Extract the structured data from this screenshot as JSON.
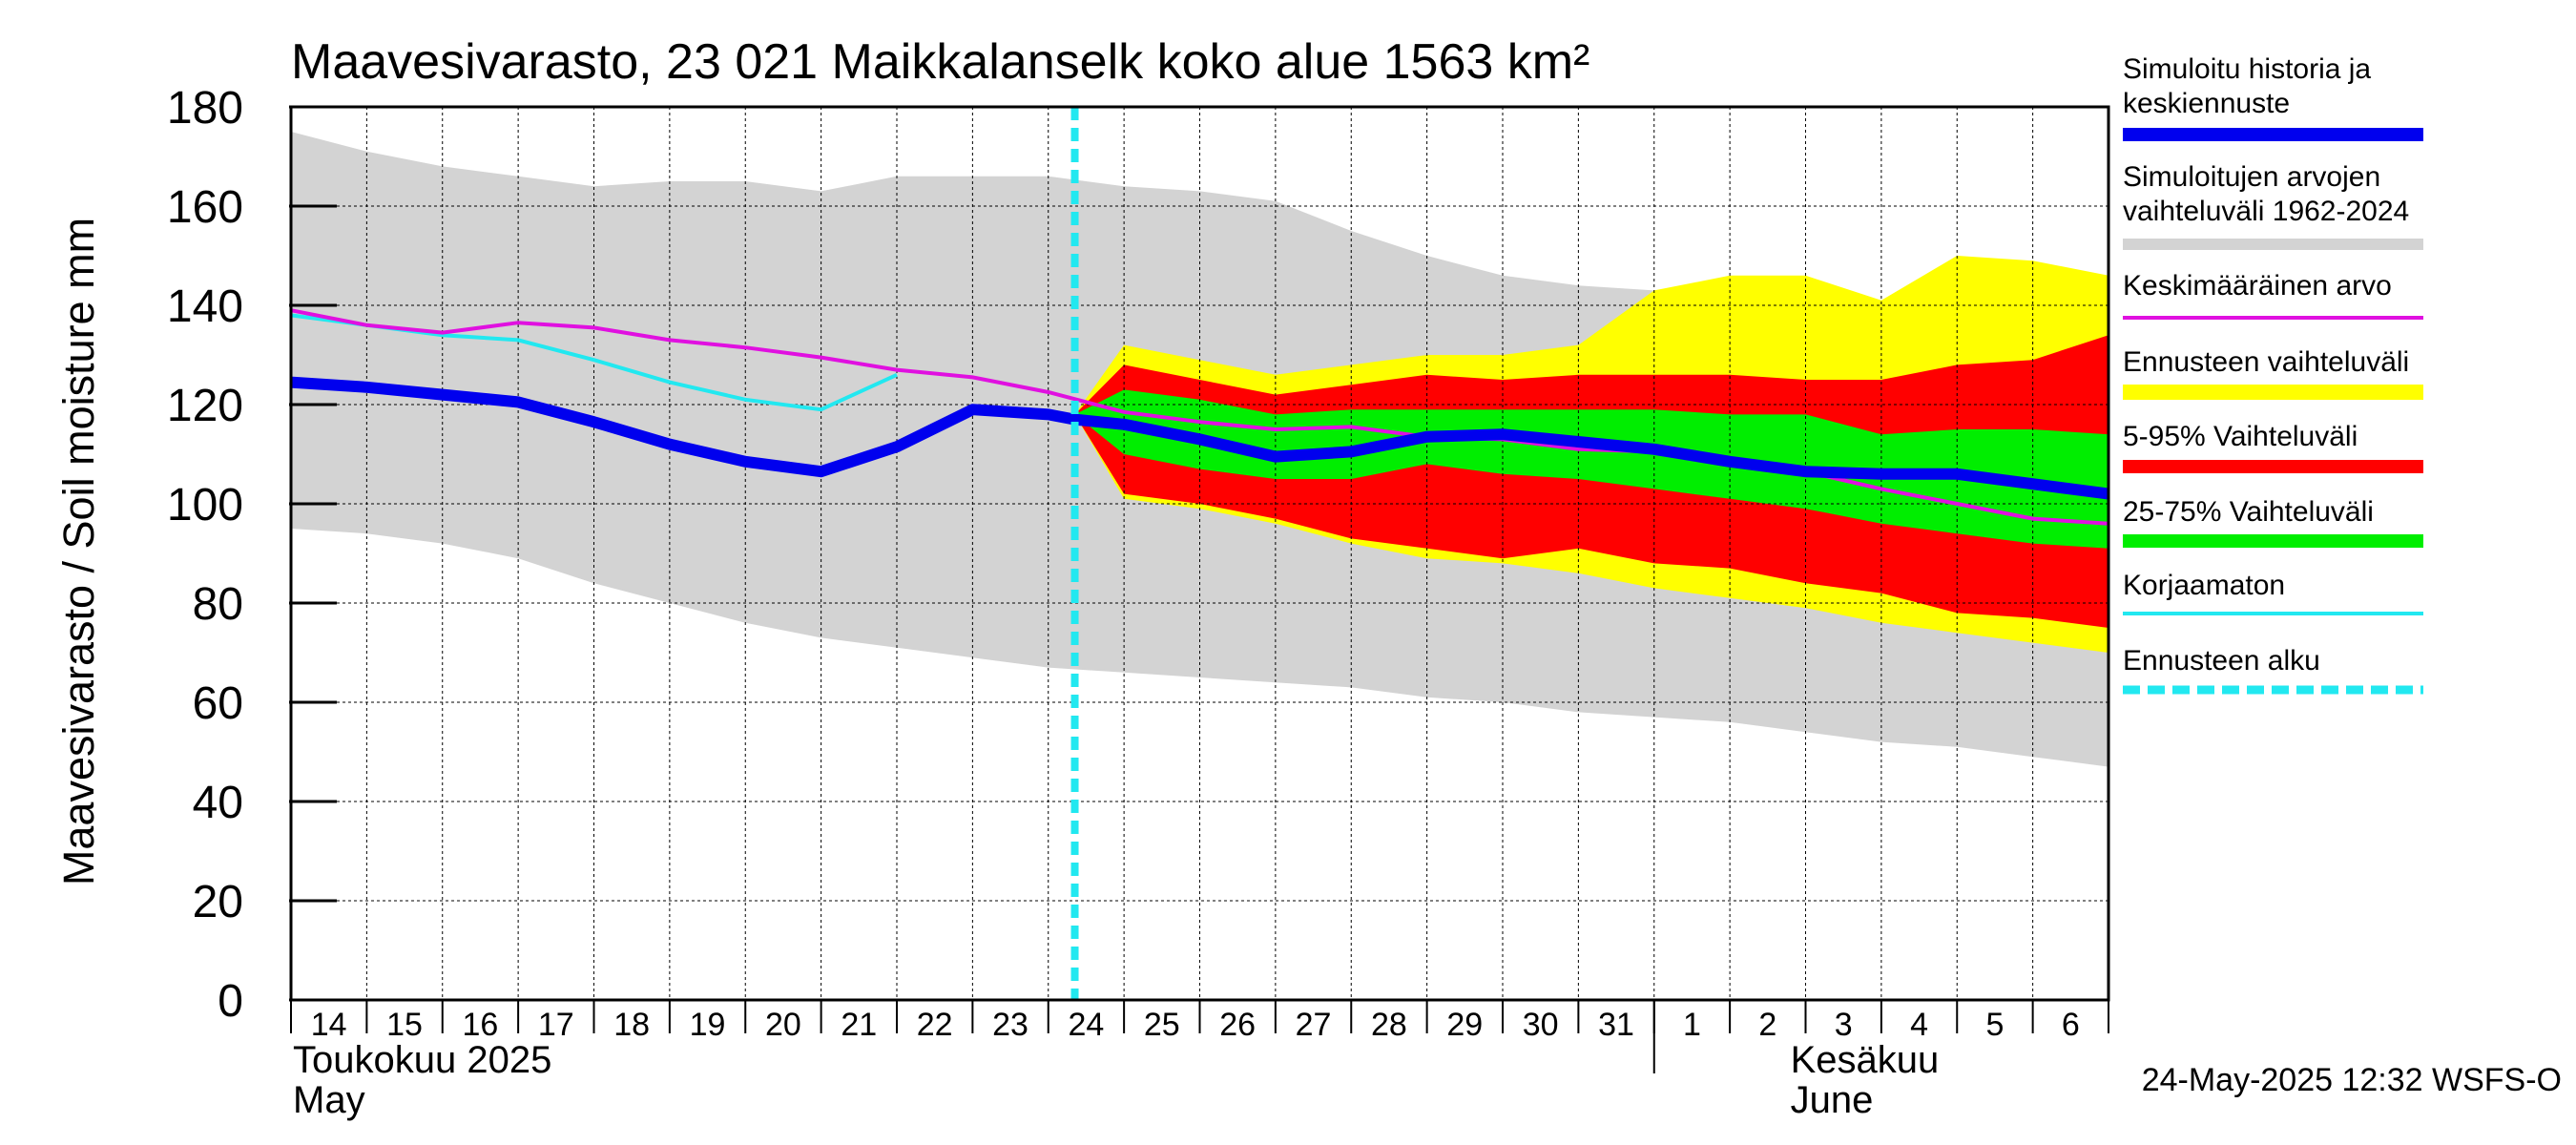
{
  "chart_data": {
    "type": "area",
    "title": "Maavesivarasto, 23 021 Maikkalanselk koko alue 1563 km²",
    "ylabel": "Maavesivarasto / Soil moisture   mm",
    "ylim": [
      0,
      180
    ],
    "yticks": [
      0,
      20,
      40,
      60,
      80,
      100,
      120,
      140,
      160,
      180
    ],
    "x_day_labels": [
      "14",
      "15",
      "16",
      "17",
      "18",
      "19",
      "20",
      "21",
      "22",
      "23",
      "24",
      "25",
      "26",
      "27",
      "28",
      "29",
      "30",
      "31",
      "1",
      "2",
      "3",
      "4",
      "5",
      "6"
    ],
    "month_labels": [
      {
        "fi": "Toukokuu  2025",
        "en": "May"
      },
      {
        "fi": "Kesäkuu",
        "en": "June"
      }
    ],
    "grid": true,
    "legend_position": "right",
    "forecast_start_index": 10.35,
    "timestamp": "24-May-2025 12:32 WSFS-O",
    "colors": {
      "history": "#0000ee",
      "range": "#d3d3d3",
      "mean": "#e010e0",
      "forecast_range": "#ffff00",
      "p5_95": "#ff0000",
      "p25_75": "#00ee00",
      "uncorrected": "#22e8f0",
      "forecast_start": "#22e8f0"
    },
    "legend": [
      {
        "label": "Simuloitu historia ja keskiennuste",
        "lines": [
          "Simuloitu historia ja",
          "keskiennuste"
        ],
        "key": "history"
      },
      {
        "label": "Simuloitujen arvojen vaihteluväli 1962-2024",
        "lines": [
          "Simuloitujen arvojen",
          "vaihteluväli 1962-2024"
        ],
        "key": "range"
      },
      {
        "label": "Keskimääräinen arvo",
        "lines": [
          "Keskimääräinen arvo"
        ],
        "key": "mean"
      },
      {
        "label": "Ennusteen vaihteluväli",
        "lines": [
          "Ennusteen vaihteluväli"
        ],
        "key": "forecast_range"
      },
      {
        "label": "5-95% Vaihteluväli",
        "lines": [
          "5-95% Vaihteluväli"
        ],
        "key": "p5_95"
      },
      {
        "label": "25-75% Vaihteluväli",
        "lines": [
          "25-75% Vaihteluväli"
        ],
        "key": "p25_75"
      },
      {
        "label": "Korjaamaton",
        "lines": [
          "Korjaamaton"
        ],
        "key": "uncorrected"
      },
      {
        "label": "Ennusteen alku",
        "lines": [
          "Ennusteen alku"
        ],
        "key": "forecast_start"
      }
    ],
    "series": {
      "range_band": {
        "x": [
          0,
          1,
          2,
          3,
          4,
          5,
          6,
          7,
          8,
          9,
          10,
          11,
          12,
          13,
          14,
          15,
          16,
          17,
          18,
          19,
          20,
          21,
          22,
          23,
          24
        ],
        "upper": [
          175,
          171,
          168,
          166,
          164,
          165,
          165,
          163,
          166,
          166,
          166,
          164,
          163,
          161,
          155,
          150,
          146,
          144,
          143,
          143,
          141,
          139,
          137,
          135,
          134
        ],
        "lower": [
          95,
          94,
          92,
          89,
          84,
          80,
          76,
          73,
          71,
          69,
          67,
          66,
          65,
          64,
          63,
          61,
          60,
          58,
          57,
          56,
          54,
          52,
          51,
          49,
          47
        ]
      },
      "forecast_band": {
        "x": [
          10.35,
          11,
          12,
          13,
          14,
          15,
          16,
          17,
          18,
          19,
          20,
          21,
          22,
          23,
          24
        ],
        "upper": [
          118,
          132,
          129,
          126,
          128,
          130,
          130,
          132,
          143,
          146,
          146,
          141,
          150,
          149,
          146
        ],
        "lower": [
          118,
          101,
          99,
          96,
          92,
          89,
          88,
          86,
          83,
          81,
          79,
          76,
          74,
          72,
          70
        ]
      },
      "p5_95_band": {
        "x": [
          10.35,
          11,
          12,
          13,
          14,
          15,
          16,
          17,
          18,
          19,
          20,
          21,
          22,
          23,
          24
        ],
        "upper": [
          118,
          128,
          125,
          122,
          124,
          126,
          125,
          126,
          126,
          126,
          125,
          125,
          128,
          129,
          134
        ],
        "lower": [
          118,
          102,
          100,
          97,
          93,
          91,
          89,
          91,
          88,
          87,
          84,
          82,
          78,
          77,
          75
        ]
      },
      "p25_75_band": {
        "x": [
          10.35,
          11,
          12,
          13,
          14,
          15,
          16,
          17,
          18,
          19,
          20,
          21,
          22,
          23,
          24
        ],
        "upper": [
          118,
          123,
          121,
          118,
          119,
          119,
          119,
          119,
          119,
          118,
          118,
          114,
          115,
          115,
          114
        ],
        "lower": [
          118,
          110,
          107,
          105,
          105,
          108,
          106,
          105,
          103,
          101,
          99,
          96,
          94,
          92,
          91
        ]
      },
      "history_median": {
        "x": [
          0,
          1,
          2,
          3,
          4,
          5,
          6,
          7,
          8,
          9,
          10,
          10.35,
          11,
          12,
          13,
          14,
          15,
          16,
          17,
          18,
          19,
          20,
          21,
          22,
          23,
          24
        ],
        "y": [
          124.5,
          123.5,
          122,
          120.5,
          116.5,
          112,
          108.5,
          106.5,
          111.5,
          119,
          118,
          117,
          116,
          113,
          109.5,
          110.5,
          113.5,
          114,
          112.5,
          111,
          108.5,
          106.5,
          106,
          106,
          104,
          102
        ]
      },
      "mean": {
        "x": [
          0,
          1,
          2,
          3,
          4,
          5,
          6,
          7,
          8,
          9,
          10,
          11,
          12,
          13,
          14,
          15,
          16,
          17,
          18,
          19,
          20,
          21,
          22,
          23,
          24
        ],
        "y": [
          139,
          136,
          134.5,
          136.5,
          135.5,
          133,
          131.5,
          129.5,
          127,
          125.5,
          122.5,
          118.5,
          116.5,
          115,
          115.5,
          113.5,
          113,
          111,
          110.5,
          109,
          106.5,
          103,
          100,
          97,
          96
        ]
      },
      "uncorrected": {
        "x": [
          0,
          1,
          2,
          3,
          4,
          5,
          6,
          7,
          8
        ],
        "y": [
          138,
          136,
          134,
          133,
          129,
          124.5,
          121,
          119,
          126
        ]
      }
    }
  }
}
